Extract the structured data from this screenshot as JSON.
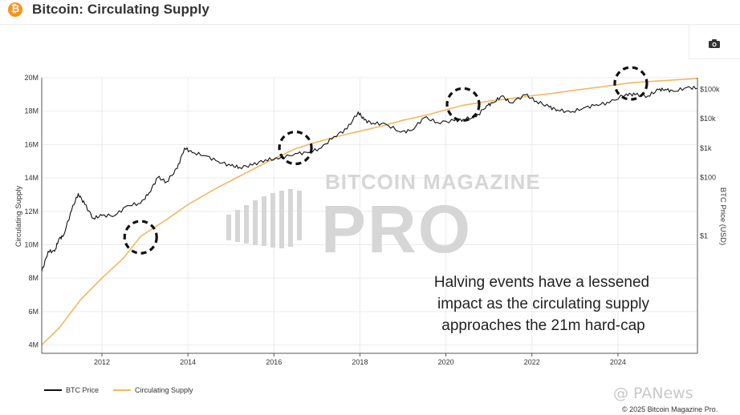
{
  "header": {
    "title": "Bitcoin: Circulating Supply",
    "logo_glyph": "₿"
  },
  "legend": {
    "btc_label": "BTC Price",
    "supply_label": "Circulating Supply"
  },
  "watermark": {
    "line1": "BITCOIN MAGAZINE",
    "line2": "PRO"
  },
  "annotation": {
    "lines": [
      "Halving events have a lessened",
      "impact as the circulating supply",
      "approaches the 21m hard-cap"
    ]
  },
  "footer": {
    "copyright": "© 2025 Bitcoin Magazine Pro.",
    "source_mark": "@ PANews"
  },
  "colors": {
    "btc": "#111111",
    "supply": "#f0b861",
    "grid": "#ebebeb",
    "axis": "#555555"
  },
  "chart_data": {
    "type": "line",
    "title": "Bitcoin: Circulating Supply",
    "xlabel": "",
    "ylabel": "Circulating Supply",
    "y2label": "BTC Price (USD)",
    "xlim": [
      2010.6,
      2025.85
    ],
    "ylim": [
      3500000,
      20000000
    ],
    "y2_log_range": [
      0.0001,
      250000
    ],
    "x_ticks": [
      2012,
      2014,
      2016,
      2018,
      2020,
      2022,
      2024
    ],
    "y_ticks": [
      {
        "value": 4000000,
        "label": "4M"
      },
      {
        "value": 6000000,
        "label": "6M"
      },
      {
        "value": 8000000,
        "label": "8M"
      },
      {
        "value": 10000000,
        "label": "10M"
      },
      {
        "value": 12000000,
        "label": "12M"
      },
      {
        "value": 14000000,
        "label": "14M"
      },
      {
        "value": 16000000,
        "label": "16M"
      },
      {
        "value": 18000000,
        "label": "18M"
      },
      {
        "value": 20000000,
        "label": "20M"
      }
    ],
    "y2_ticks": [
      {
        "value": 1,
        "label": "$1"
      },
      {
        "value": 100,
        "label": "$100"
      },
      {
        "value": 1000,
        "label": "$1k"
      },
      {
        "value": 10000,
        "label": "$10k"
      },
      {
        "value": 100000,
        "label": "$100k"
      }
    ],
    "series": [
      {
        "name": "Circulating Supply",
        "axis": "left",
        "x": [
          2010.6,
          2011.0,
          2011.5,
          2012.0,
          2012.5,
          2012.9,
          2013.5,
          2014.0,
          2014.6,
          2015.2,
          2015.8,
          2016.5,
          2017.0,
          2017.5,
          2018.0,
          2018.5,
          2019.0,
          2019.6,
          2020.4,
          2021.0,
          2021.5,
          2022.0,
          2022.5,
          2023.0,
          2023.6,
          2024.3,
          2025.0,
          2025.85
        ],
        "values": [
          4000000,
          5000000,
          6700000,
          8000000,
          9200000,
          10500000,
          11500000,
          12400000,
          13300000,
          14100000,
          14900000,
          15750000,
          16150000,
          16500000,
          16800000,
          17100000,
          17450000,
          17800000,
          18350000,
          18600000,
          18750000,
          18920000,
          19070000,
          19250000,
          19450000,
          19700000,
          19820000,
          19950000
        ]
      },
      {
        "name": "BTC Price",
        "axis": "right",
        "x": [
          2010.6,
          2010.75,
          2010.9,
          2011.0,
          2011.1,
          2011.3,
          2011.45,
          2011.6,
          2011.8,
          2012.0,
          2012.3,
          2012.6,
          2012.9,
          2013.1,
          2013.3,
          2013.5,
          2013.75,
          2013.92,
          2014.1,
          2014.4,
          2014.7,
          2015.0,
          2015.2,
          2015.5,
          2015.8,
          2016.1,
          2016.5,
          2016.8,
          2017.1,
          2017.4,
          2017.7,
          2017.96,
          2018.1,
          2018.3,
          2018.6,
          2018.95,
          2019.2,
          2019.5,
          2019.8,
          2020.2,
          2020.4,
          2020.7,
          2020.95,
          2021.1,
          2021.3,
          2021.5,
          2021.85,
          2022.1,
          2022.4,
          2022.6,
          2022.9,
          2023.2,
          2023.5,
          2023.8,
          2024.2,
          2024.4,
          2024.7,
          2024.95,
          2025.1,
          2025.3,
          2025.6,
          2025.85
        ],
        "values": [
          0.06,
          0.3,
          0.3,
          0.8,
          1.0,
          8,
          28,
          12,
          4,
          5,
          5,
          11,
          13,
          30,
          100,
          70,
          200,
          1000,
          700,
          550,
          350,
          250,
          220,
          260,
          400,
          420,
          650,
          700,
          1000,
          2500,
          4500,
          17000,
          9000,
          7000,
          6500,
          3500,
          4000,
          11000,
          7500,
          8500,
          9500,
          11500,
          28000,
          35000,
          60000,
          35000,
          65000,
          40000,
          25000,
          20000,
          16500,
          23000,
          30000,
          35000,
          70000,
          65000,
          60000,
          98000,
          100000,
          85000,
          115000,
          110000
        ]
      }
    ],
    "halving_highlights": [
      {
        "x": 2012.9,
        "supply": 10450000
      },
      {
        "x": 2016.5,
        "supply": 15800000
      },
      {
        "x": 2020.4,
        "supply": 18400000
      },
      {
        "x": 2024.3,
        "supply": 19660000
      }
    ]
  }
}
